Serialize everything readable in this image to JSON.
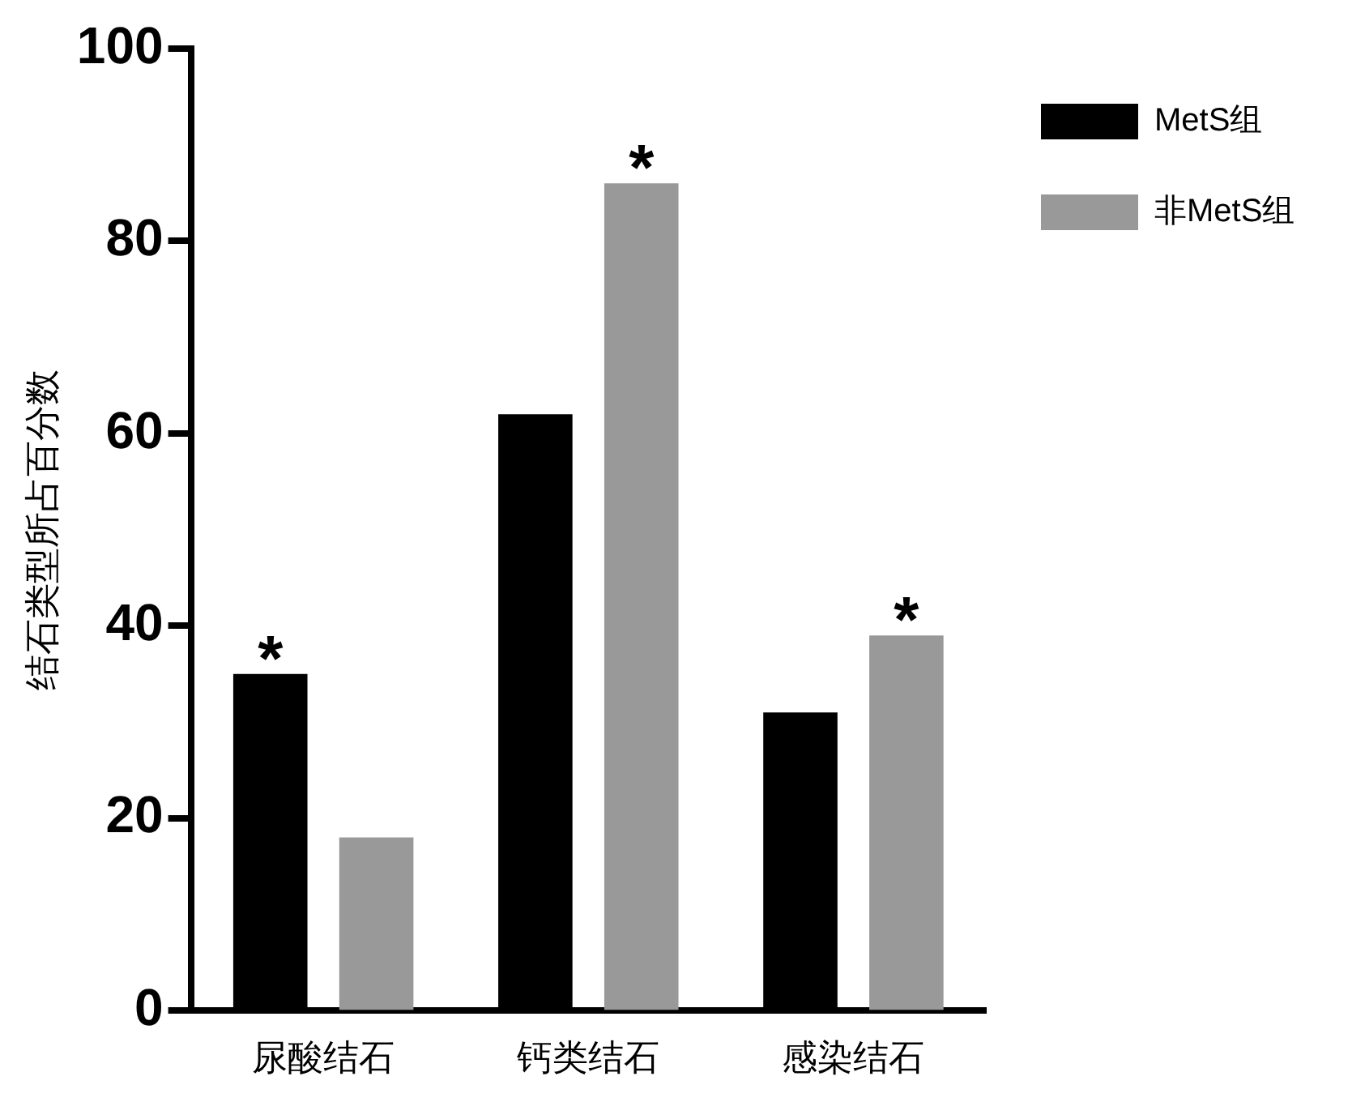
{
  "chart_data": {
    "type": "bar",
    "ylabel": "结石类型所占百分数",
    "categories": [
      "尿酸结石",
      "钙类结石",
      "感染结石"
    ],
    "series": [
      {
        "name": "MetS组",
        "color": "#000000",
        "values": [
          35,
          62,
          31
        ]
      },
      {
        "name": "非MetS组",
        "color": "#999999",
        "values": [
          18,
          86,
          39
        ]
      }
    ],
    "ylim": [
      0,
      100
    ],
    "yticks": [
      0,
      20,
      40,
      60,
      80,
      100
    ],
    "grid": false,
    "legend": "top right",
    "annotations": [
      "*",
      "*",
      "*"
    ]
  }
}
